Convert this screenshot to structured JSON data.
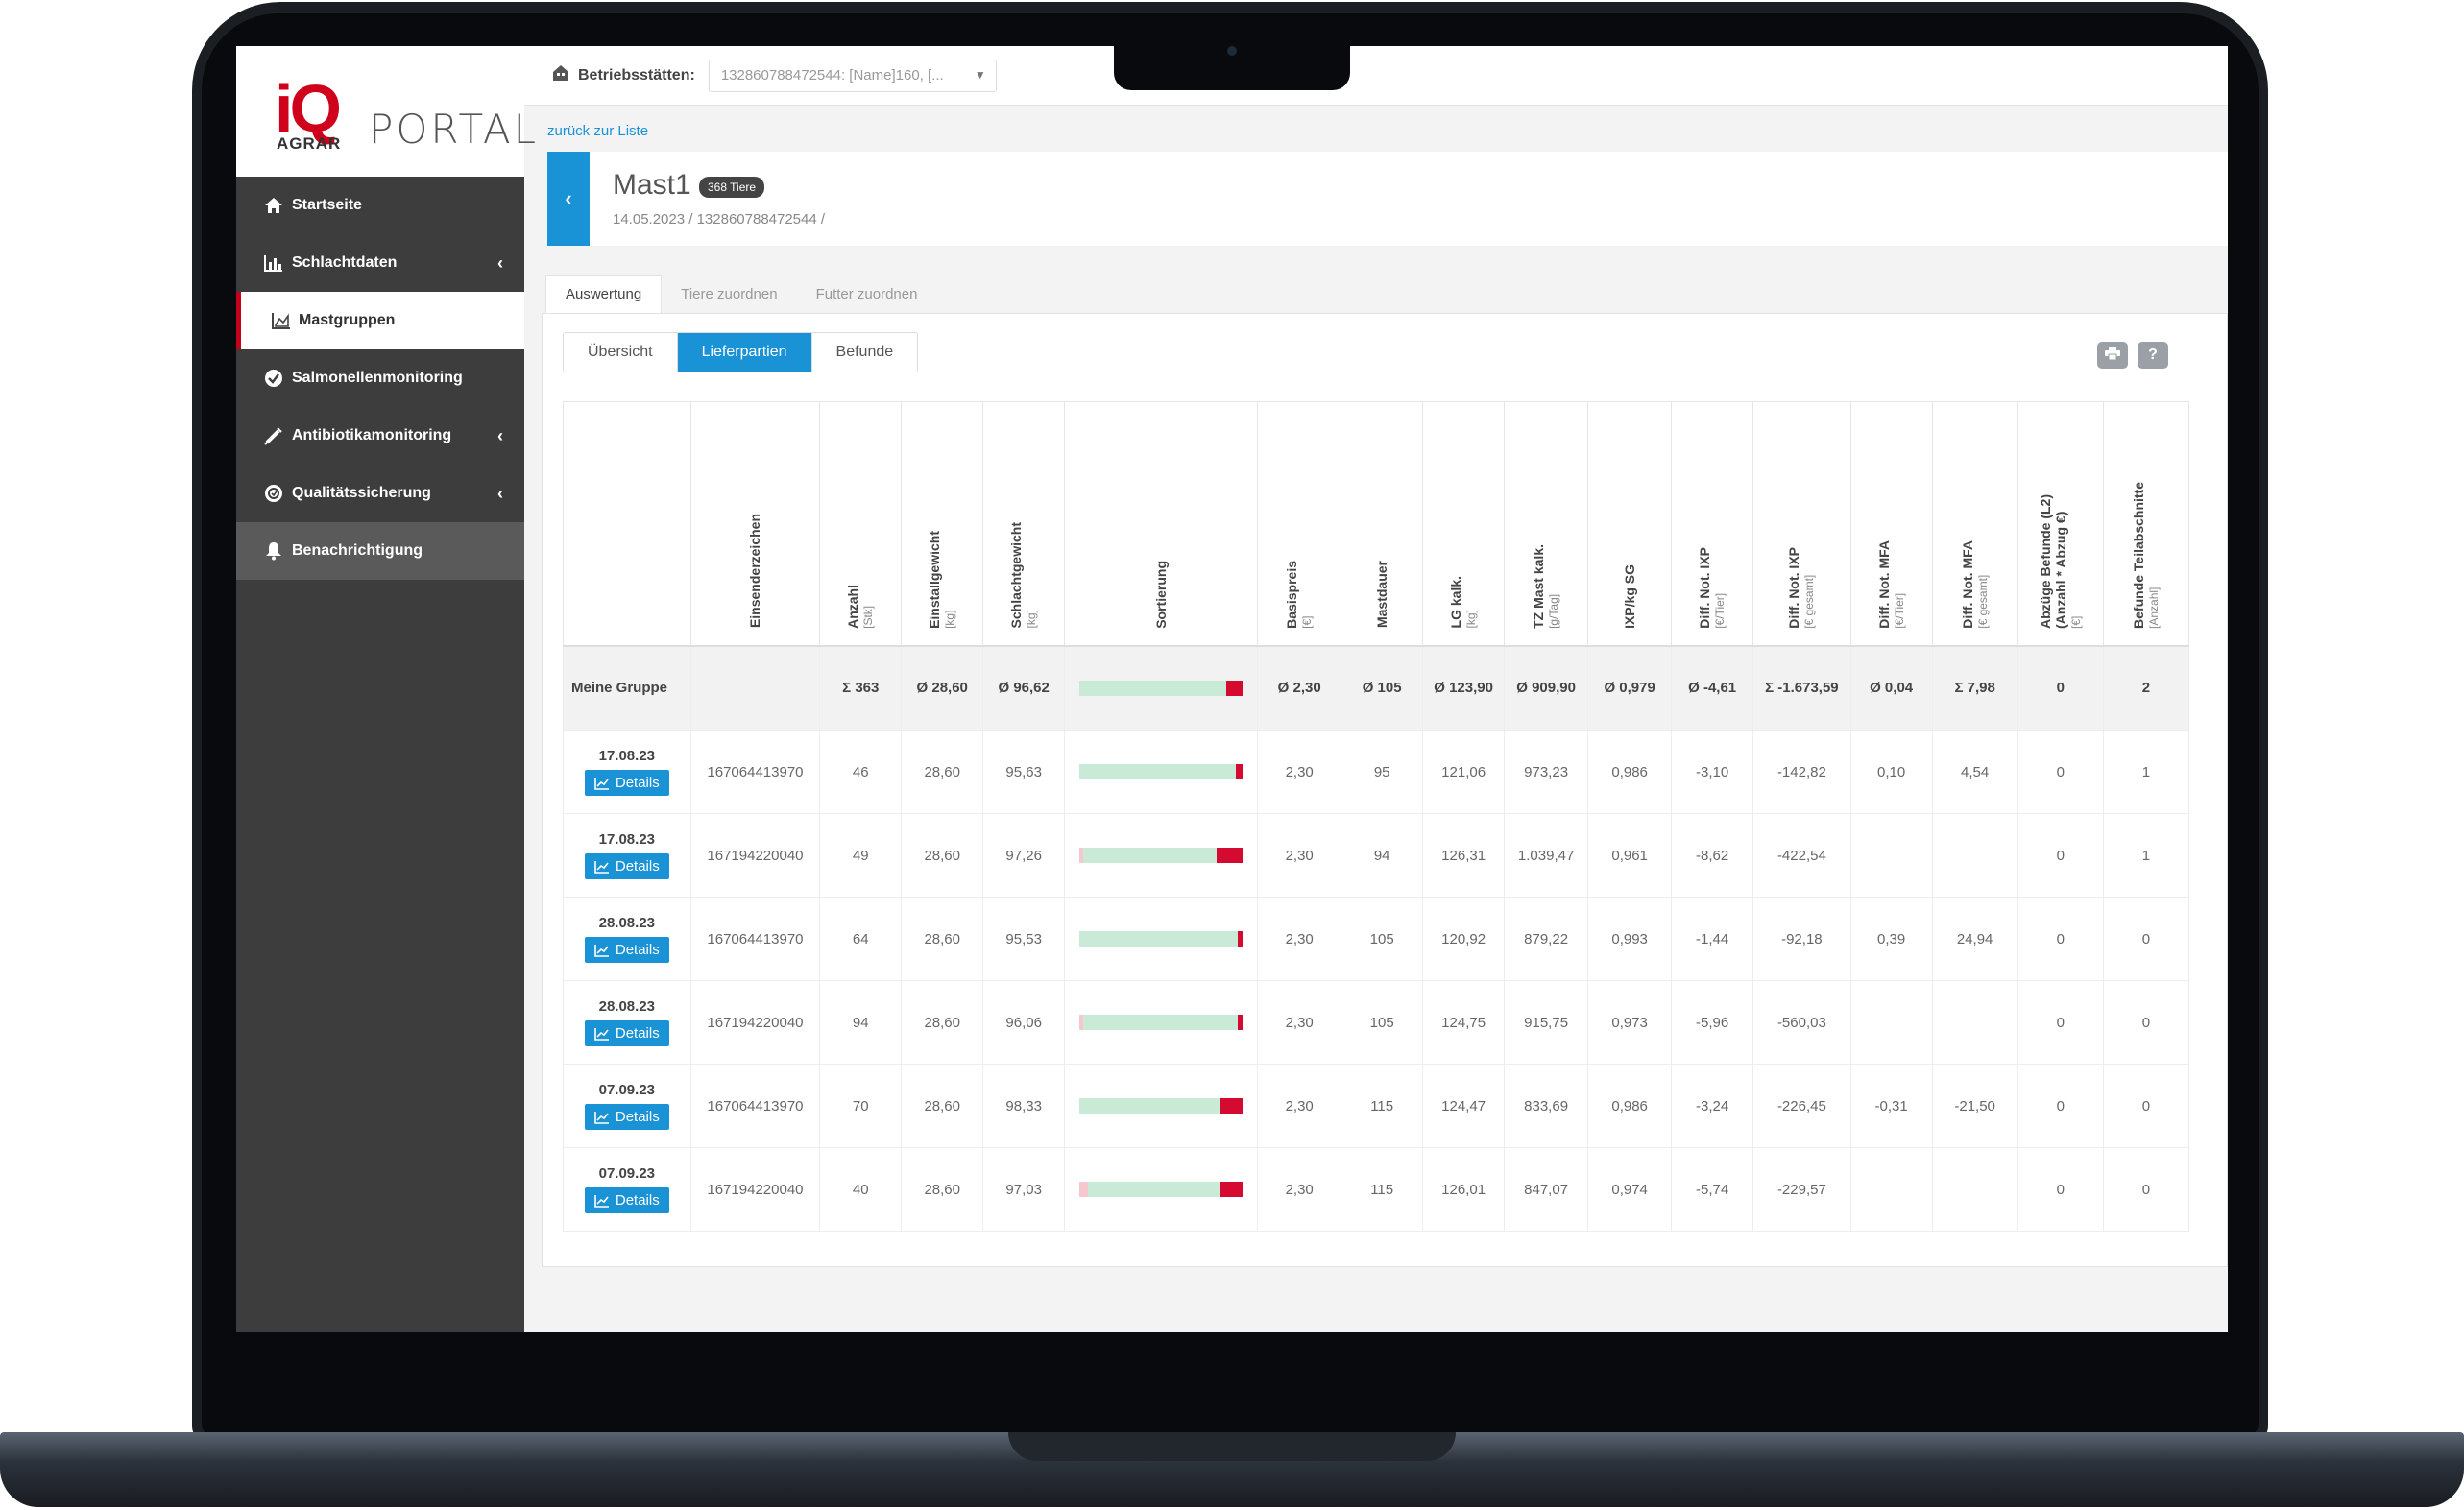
{
  "sidebar": {
    "logo_iq": "iQ",
    "logo_agrar": "AGRAR",
    "logo_portal": "PORTAL",
    "items": [
      {
        "label": "Startseite",
        "icon": "home-icon"
      },
      {
        "label": "Schlachtdaten",
        "icon": "bar-chart-icon"
      },
      {
        "label": "Mastgruppen",
        "icon": "area-chart-icon"
      },
      {
        "label": "Salmonellenmonitoring",
        "icon": "check-badge-icon"
      },
      {
        "label": "Antibiotikamonitoring",
        "icon": "syringe-icon"
      },
      {
        "label": "Qualitätssicherung",
        "icon": "certificate-icon"
      },
      {
        "label": "Benachrichtigung",
        "icon": "bell-icon"
      }
    ]
  },
  "topbar": {
    "label": "Betriebsstätten:",
    "select_value": "132860788472544: [Name]160, [..."
  },
  "backlink": "zurück zur Liste",
  "header": {
    "title": "Mast1",
    "badge": "368 Tiere",
    "subtitle": "14.05.2023 / 132860788472544 /"
  },
  "tabs": [
    "Auswertung",
    "Tiere zuordnen",
    "Futter zuordnen"
  ],
  "segments": [
    "Übersicht",
    "Lieferpartien",
    "Befunde"
  ],
  "columns": [
    {
      "label": "Einsenderzeichen",
      "unit": ""
    },
    {
      "label": "Anzahl",
      "unit": "[Stk]"
    },
    {
      "label": "Einstallgewicht",
      "unit": "[kg]"
    },
    {
      "label": "Schlachtgewicht",
      "unit": "[kg]"
    },
    {
      "label": "Sortierung",
      "unit": ""
    },
    {
      "label": "Basispreis",
      "unit": "[€]"
    },
    {
      "label": "Mastdauer",
      "unit": ""
    },
    {
      "label": "LG kalk.",
      "unit": "[kg]"
    },
    {
      "label": "TZ Mast kalk.",
      "unit": "[g/Tag]"
    },
    {
      "label": "IXP/kg SG",
      "unit": ""
    },
    {
      "label": "Diff. Not. IXP",
      "unit": "[€/Tier]"
    },
    {
      "label": "Diff. Not. IXP",
      "unit": "[€ gesamt]"
    },
    {
      "label": "Diff. Not. MFA",
      "unit": "[€/Tier]"
    },
    {
      "label": "Diff. Not. MFA",
      "unit": "[€ gesamt]"
    },
    {
      "label": "Abzüge Befunde (L2)",
      "label2": "(Anzahl * Abzug €)",
      "unit": "[€]"
    },
    {
      "label": "Befunde Teilabschnitte",
      "unit": "[Anzahl]"
    }
  ],
  "summary": {
    "label": "Meine Gruppe",
    "anzahl": "Σ 363",
    "einstall": "Ø 28,60",
    "schlacht": "Ø 96,62",
    "sort_green": 0.9,
    "sort_red": 0.1,
    "basis": "Ø 2,30",
    "dauer": "Ø 105",
    "lg": "Ø 123,90",
    "tz": "Ø 909,90",
    "ixp": "Ø 0,979",
    "d_ixp_t": "Ø -4,61",
    "d_ixp_g": "Σ -1.673,59",
    "d_mfa_t": "Ø 0,04",
    "d_mfa_g": "Σ 7,98",
    "abz": "0",
    "bef": "2"
  },
  "details_label": "Details",
  "rows": [
    {
      "date": "17.08.23",
      "einsender": "167064413970",
      "anzahl": "46",
      "einstall": "28,60",
      "schlacht": "95,63",
      "sort_pink": 0.0,
      "sort_green": 0.96,
      "sort_red": 0.04,
      "basis": "2,30",
      "dauer": "95",
      "lg": "121,06",
      "tz": "973,23",
      "ixp": "0,986",
      "d_ixp_t": "-3,10",
      "d_ixp_g": "-142,82",
      "d_mfa_t": "0,10",
      "d_mfa_g": "4,54",
      "abz": "0",
      "bef": "1"
    },
    {
      "date": "17.08.23",
      "einsender": "167194220040",
      "anzahl": "49",
      "einstall": "28,60",
      "schlacht": "97,26",
      "sort_pink": 0.02,
      "sort_green": 0.82,
      "sort_red": 0.16,
      "basis": "2,30",
      "dauer": "94",
      "lg": "126,31",
      "tz": "1.039,47",
      "ixp": "0,961",
      "d_ixp_t": "-8,62",
      "d_ixp_g": "-422,54",
      "d_mfa_t": "",
      "d_mfa_g": "",
      "abz": "0",
      "bef": "1"
    },
    {
      "date": "28.08.23",
      "einsender": "167064413970",
      "anzahl": "64",
      "einstall": "28,60",
      "schlacht": "95,53",
      "sort_pink": 0.0,
      "sort_green": 0.97,
      "sort_red": 0.03,
      "basis": "2,30",
      "dauer": "105",
      "lg": "120,92",
      "tz": "879,22",
      "ixp": "0,993",
      "d_ixp_t": "-1,44",
      "d_ixp_g": "-92,18",
      "d_mfa_t": "0,39",
      "d_mfa_g": "24,94",
      "abz": "0",
      "bef": "0"
    },
    {
      "date": "28.08.23",
      "einsender": "167194220040",
      "anzahl": "94",
      "einstall": "28,60",
      "schlacht": "96,06",
      "sort_pink": 0.02,
      "sort_green": 0.95,
      "sort_red": 0.03,
      "basis": "2,30",
      "dauer": "105",
      "lg": "124,75",
      "tz": "915,75",
      "ixp": "0,973",
      "d_ixp_t": "-5,96",
      "d_ixp_g": "-560,03",
      "d_mfa_t": "",
      "d_mfa_g": "",
      "abz": "0",
      "bef": "0"
    },
    {
      "date": "07.09.23",
      "einsender": "167064413970",
      "anzahl": "70",
      "einstall": "28,60",
      "schlacht": "98,33",
      "sort_pink": 0.0,
      "sort_green": 0.86,
      "sort_red": 0.14,
      "basis": "2,30",
      "dauer": "115",
      "lg": "124,47",
      "tz": "833,69",
      "ixp": "0,986",
      "d_ixp_t": "-3,24",
      "d_ixp_g": "-226,45",
      "d_mfa_t": "-0,31",
      "d_mfa_g": "-21,50",
      "abz": "0",
      "bef": "0"
    },
    {
      "date": "07.09.23",
      "einsender": "167194220040",
      "anzahl": "40",
      "einstall": "28,60",
      "schlacht": "97,03",
      "sort_pink": 0.05,
      "sort_green": 0.81,
      "sort_red": 0.14,
      "basis": "2,30",
      "dauer": "115",
      "lg": "126,01",
      "tz": "847,07",
      "ixp": "0,974",
      "d_ixp_t": "-5,74",
      "d_ixp_g": "-229,57",
      "d_mfa_t": "",
      "d_mfa_g": "",
      "abz": "0",
      "bef": "0"
    }
  ]
}
